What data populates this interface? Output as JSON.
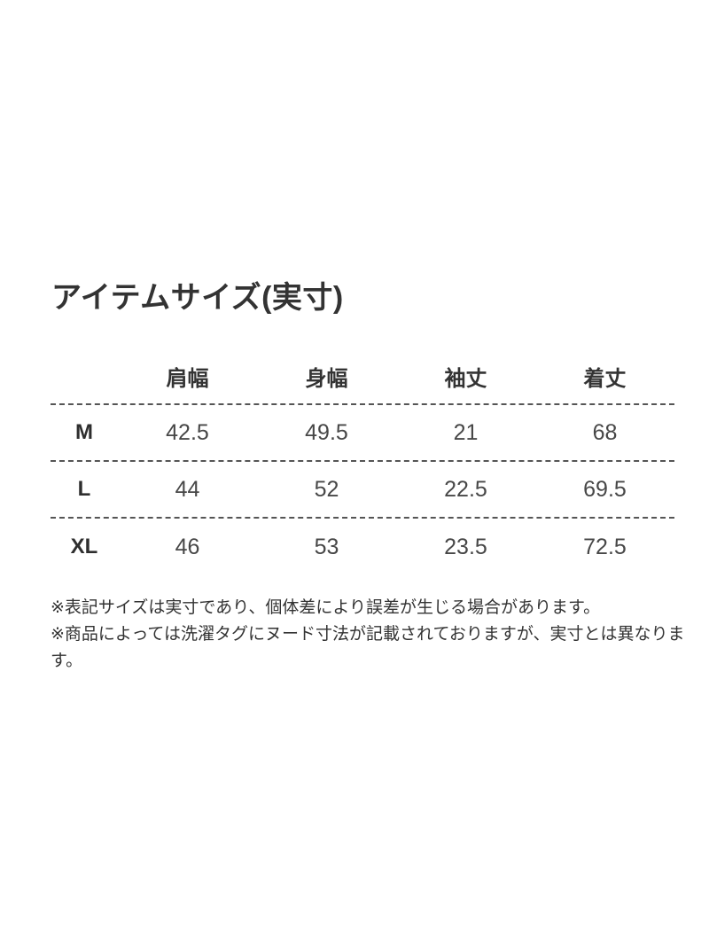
{
  "page": {
    "title": "アイテムサイズ(実寸)"
  },
  "size_table": {
    "columns": [
      "肩幅",
      "身幅",
      "袖丈",
      "着丈"
    ],
    "rows": [
      {
        "size": "M",
        "values": [
          "42.5",
          "49.5",
          "21",
          "68"
        ]
      },
      {
        "size": "L",
        "values": [
          "44",
          "52",
          "22.5",
          "69.5"
        ]
      },
      {
        "size": "XL",
        "values": [
          "46",
          "53",
          "23.5",
          "72.5"
        ]
      }
    ]
  },
  "notes": [
    "※表記サイズは実寸であり、個体差により誤差が生じる場合があります。",
    "※商品によっては洗濯タグにヌード寸法が記載されておりますが、実寸とは異なります。"
  ],
  "colors": {
    "text": "#333333",
    "value_text": "#474747",
    "divider": "#555555",
    "background": "#ffffff"
  }
}
